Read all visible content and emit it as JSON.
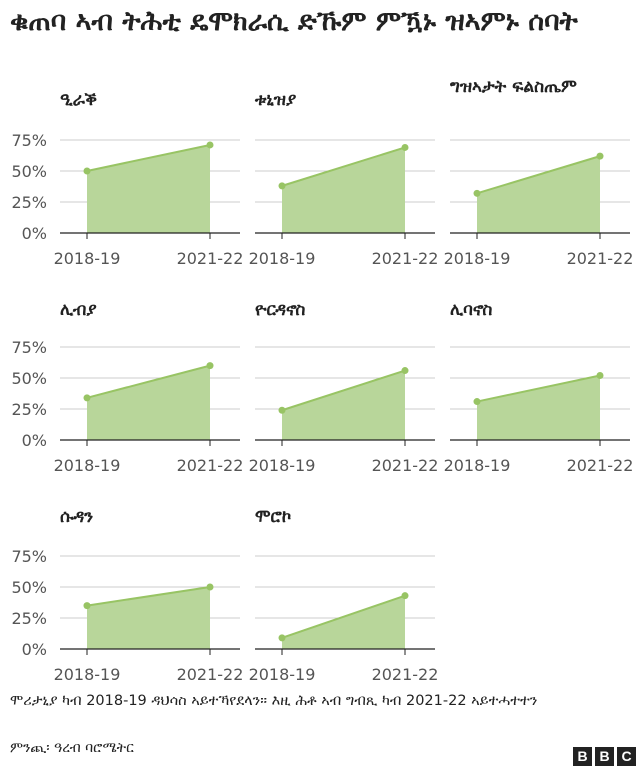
{
  "title": "ቁጠባ ኣብ ትሕቲ ዴሞክራሲ ድኹም ምዃኑ ዝኣምኑ ሰባት",
  "note": "ሞሪታኒያ ካብ 2018-19 ዳህሳስ ኣይተኻየደላን።  እዚ ሕቶ ኣብ ግብጺ ካብ 2021-22 ኣይተሓተተን",
  "source": "ምንጪ፡ ዓረብ ባሮሜትር",
  "logo": [
    "B",
    "B",
    "C"
  ],
  "colors": {
    "area": "#b8d69a",
    "line": "#98c464",
    "point": "#98c464",
    "axis": "#222222",
    "grid": "#cccccc",
    "label": "#555555"
  },
  "chart_data": [
    {
      "type": "area",
      "title": "ዒራቕ",
      "x": [
        "2018-19",
        "2021-22"
      ],
      "values": [
        50,
        71
      ],
      "yticks": [
        "0%",
        "25%",
        "50%",
        "75%"
      ],
      "ylim": [
        0,
        75
      ],
      "unit": "%"
    },
    {
      "type": "area",
      "title": "ቱኒዝያ",
      "x": [
        "2018-19",
        "2021-22"
      ],
      "values": [
        38,
        69
      ],
      "yticks": [
        "0%",
        "25%",
        "50%",
        "75%"
      ],
      "ylim": [
        0,
        75
      ],
      "unit": "%"
    },
    {
      "type": "area",
      "title": "ግዝኣታት ፍልስጤም",
      "x": [
        "2018-19",
        "2021-22"
      ],
      "values": [
        32,
        62
      ],
      "yticks": [
        "0%",
        "25%",
        "50%",
        "75%"
      ],
      "ylim": [
        0,
        75
      ],
      "unit": "%"
    },
    {
      "type": "area",
      "title": "ሊብያ",
      "x": [
        "2018-19",
        "2021-22"
      ],
      "values": [
        34,
        60
      ],
      "yticks": [
        "0%",
        "25%",
        "50%",
        "75%"
      ],
      "ylim": [
        0,
        75
      ],
      "unit": "%"
    },
    {
      "type": "area",
      "title": "ዮርዳኖስ",
      "x": [
        "2018-19",
        "2021-22"
      ],
      "values": [
        24,
        56
      ],
      "yticks": [
        "0%",
        "25%",
        "50%",
        "75%"
      ],
      "ylim": [
        0,
        75
      ],
      "unit": "%"
    },
    {
      "type": "area",
      "title": "ሊባኖስ",
      "x": [
        "2018-19",
        "2021-22"
      ],
      "values": [
        31,
        52
      ],
      "yticks": [
        "0%",
        "25%",
        "50%",
        "75%"
      ],
      "ylim": [
        0,
        75
      ],
      "unit": "%"
    },
    {
      "type": "area",
      "title": "ሱዳን",
      "x": [
        "2018-19",
        "2021-22"
      ],
      "values": [
        35,
        50
      ],
      "yticks": [
        "0%",
        "25%",
        "50%",
        "75%"
      ],
      "ylim": [
        0,
        75
      ],
      "unit": "%"
    },
    {
      "type": "area",
      "title": "ሞሮኮ",
      "x": [
        "2018-19",
        "2021-22"
      ],
      "values": [
        9,
        43
      ],
      "yticks": [
        "0%",
        "25%",
        "50%",
        "75%"
      ],
      "ylim": [
        0,
        75
      ],
      "unit": "%"
    }
  ]
}
